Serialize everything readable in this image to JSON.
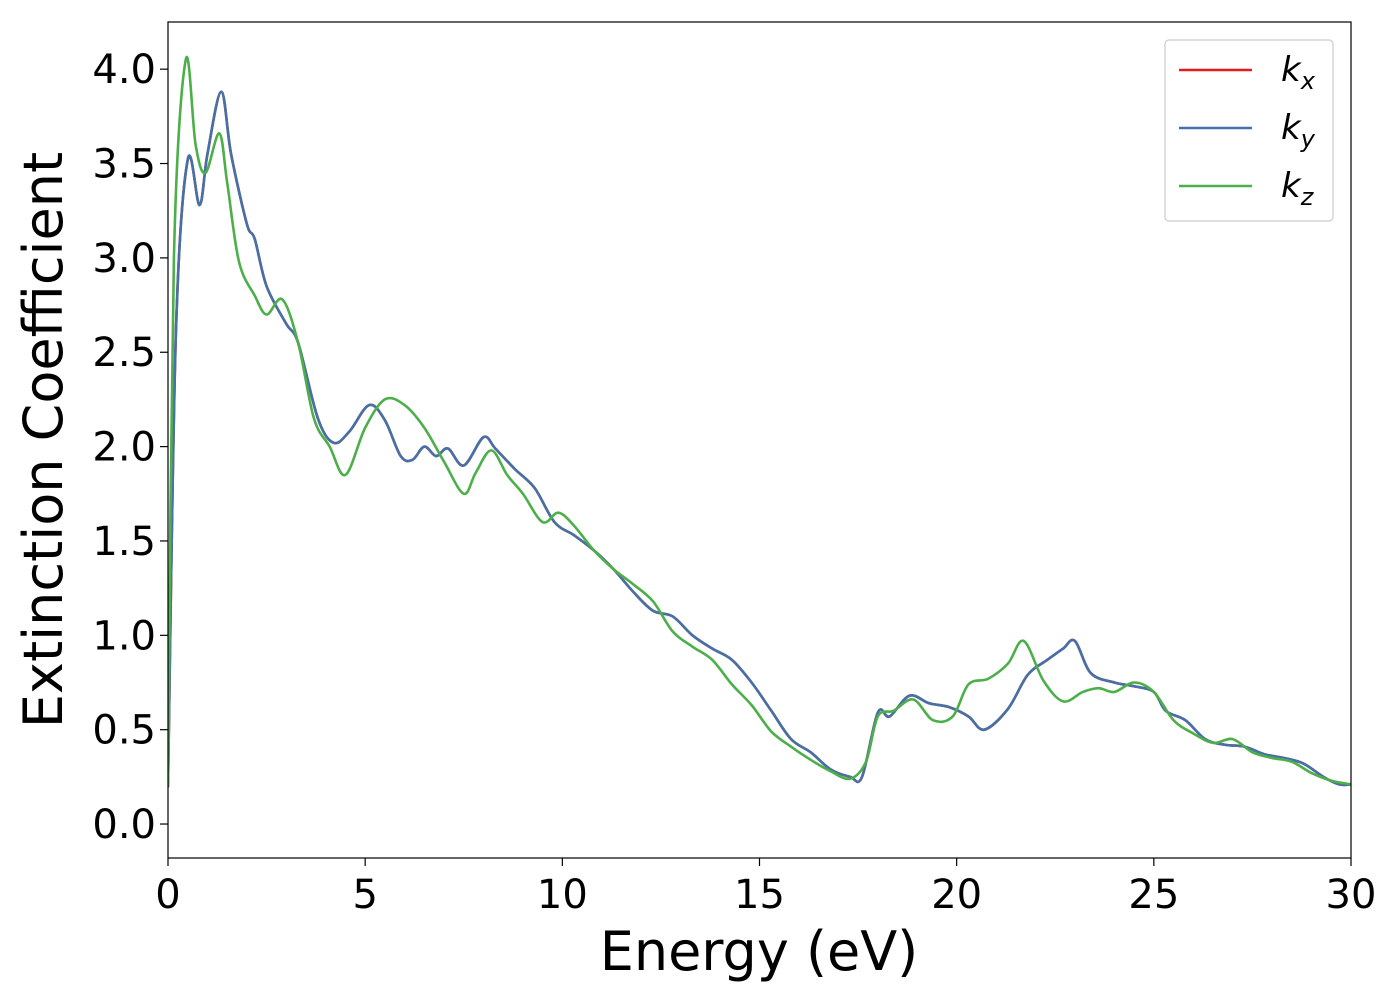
{
  "chart_data": {
    "type": "line",
    "xlabel": "Energy (eV)",
    "ylabel": "Extinction Coefficient",
    "xlim": [
      0,
      30
    ],
    "ylim": [
      -0.18,
      4.25
    ],
    "xticks": [
      "0",
      "5",
      "10",
      "15",
      "20",
      "25",
      "30"
    ],
    "yticks": [
      "0.0",
      "0.5",
      "1.0",
      "1.5",
      "2.0",
      "2.5",
      "3.0",
      "3.5",
      "4.0"
    ],
    "grid": false,
    "legend_position": "top-right",
    "series": [
      {
        "name": "k_x",
        "legend_base": "k",
        "legend_sub": "x",
        "color": "#e41a1c",
        "x": [
          0,
          0.2,
          0.5,
          0.8,
          1.0,
          1.35,
          1.6,
          2.0,
          2.2,
          2.5,
          3.0,
          3.3,
          3.8,
          4.2,
          4.6,
          5.1,
          5.5,
          5.9,
          6.2,
          6.5,
          6.8,
          7.1,
          7.5,
          8.0,
          8.3,
          8.8,
          9.3,
          9.8,
          10.3,
          10.8,
          11.3,
          11.8,
          12.3,
          12.8,
          13.3,
          13.8,
          14.3,
          14.8,
          15.3,
          15.8,
          16.3,
          16.8,
          17.3,
          17.6,
          18.0,
          18.3,
          18.8,
          19.3,
          19.8,
          20.3,
          20.7,
          21.3,
          21.8,
          22.3,
          22.7,
          23.0,
          23.4,
          24.0,
          24.5,
          25.0,
          25.3,
          25.8,
          26.3,
          26.8,
          27.3,
          27.8,
          28.3,
          28.8,
          29.3,
          29.7,
          30.0
        ],
        "values": [
          0.2,
          2.6,
          3.52,
          3.28,
          3.55,
          3.88,
          3.55,
          3.18,
          3.1,
          2.85,
          2.65,
          2.55,
          2.15,
          2.02,
          2.08,
          2.22,
          2.14,
          1.95,
          1.93,
          2.0,
          1.95,
          1.99,
          1.9,
          2.05,
          1.99,
          1.88,
          1.78,
          1.6,
          1.53,
          1.45,
          1.35,
          1.23,
          1.13,
          1.1,
          1.0,
          0.93,
          0.87,
          0.75,
          0.6,
          0.45,
          0.38,
          0.29,
          0.25,
          0.25,
          0.59,
          0.57,
          0.68,
          0.64,
          0.62,
          0.57,
          0.5,
          0.61,
          0.79,
          0.87,
          0.93,
          0.97,
          0.8,
          0.75,
          0.73,
          0.7,
          0.6,
          0.55,
          0.45,
          0.42,
          0.41,
          0.37,
          0.35,
          0.32,
          0.25,
          0.21,
          0.21
        ]
      },
      {
        "name": "k_y",
        "legend_base": "k",
        "legend_sub": "y",
        "color": "#4472a8",
        "x": [
          0,
          0.2,
          0.5,
          0.8,
          1.0,
          1.35,
          1.6,
          2.0,
          2.2,
          2.5,
          3.0,
          3.3,
          3.8,
          4.2,
          4.6,
          5.1,
          5.5,
          5.9,
          6.2,
          6.5,
          6.8,
          7.1,
          7.5,
          8.0,
          8.3,
          8.8,
          9.3,
          9.8,
          10.3,
          10.8,
          11.3,
          11.8,
          12.3,
          12.8,
          13.3,
          13.8,
          14.3,
          14.8,
          15.3,
          15.8,
          16.3,
          16.8,
          17.3,
          17.6,
          18.0,
          18.3,
          18.8,
          19.3,
          19.8,
          20.3,
          20.7,
          21.3,
          21.8,
          22.3,
          22.7,
          23.0,
          23.4,
          24.0,
          24.5,
          25.0,
          25.3,
          25.8,
          26.3,
          26.8,
          27.3,
          27.8,
          28.3,
          28.8,
          29.3,
          29.7,
          30.0
        ],
        "values": [
          0.2,
          2.6,
          3.52,
          3.28,
          3.55,
          3.88,
          3.55,
          3.18,
          3.1,
          2.85,
          2.65,
          2.55,
          2.15,
          2.02,
          2.08,
          2.22,
          2.14,
          1.95,
          1.93,
          2.0,
          1.95,
          1.99,
          1.9,
          2.05,
          1.99,
          1.88,
          1.78,
          1.6,
          1.53,
          1.45,
          1.35,
          1.23,
          1.13,
          1.1,
          1.0,
          0.93,
          0.87,
          0.75,
          0.6,
          0.45,
          0.38,
          0.29,
          0.25,
          0.25,
          0.59,
          0.57,
          0.68,
          0.64,
          0.62,
          0.57,
          0.5,
          0.61,
          0.79,
          0.87,
          0.93,
          0.97,
          0.8,
          0.75,
          0.73,
          0.7,
          0.6,
          0.55,
          0.45,
          0.42,
          0.41,
          0.37,
          0.35,
          0.32,
          0.25,
          0.21,
          0.21
        ]
      },
      {
        "name": "k_z",
        "legend_base": "k",
        "legend_sub": "z",
        "color": "#4daf4a",
        "x": [
          0,
          0.15,
          0.45,
          0.7,
          0.95,
          1.3,
          1.5,
          1.8,
          2.2,
          2.5,
          2.9,
          3.3,
          3.7,
          4.1,
          4.5,
          5.0,
          5.5,
          6.0,
          6.5,
          7.0,
          7.5,
          7.8,
          8.2,
          8.6,
          9.0,
          9.5,
          9.9,
          10.3,
          10.8,
          11.3,
          11.8,
          12.3,
          12.8,
          13.3,
          13.8,
          14.3,
          14.8,
          15.3,
          15.8,
          16.3,
          16.8,
          17.3,
          17.7,
          18.0,
          18.4,
          18.9,
          19.4,
          19.9,
          20.3,
          20.8,
          21.3,
          21.7,
          22.2,
          22.7,
          23.2,
          23.6,
          24.0,
          24.5,
          25.0,
          25.5,
          26.0,
          26.5,
          27.0,
          27.5,
          28.0,
          28.5,
          29.0,
          29.5,
          30.0
        ],
        "values": [
          0.2,
          3.0,
          4.05,
          3.6,
          3.45,
          3.66,
          3.4,
          2.98,
          2.8,
          2.7,
          2.78,
          2.55,
          2.15,
          2.0,
          1.85,
          2.1,
          2.25,
          2.22,
          2.1,
          1.92,
          1.75,
          1.86,
          1.98,
          1.85,
          1.75,
          1.6,
          1.65,
          1.58,
          1.45,
          1.35,
          1.27,
          1.18,
          1.02,
          0.94,
          0.87,
          0.74,
          0.63,
          0.49,
          0.41,
          0.34,
          0.28,
          0.24,
          0.33,
          0.57,
          0.6,
          0.66,
          0.55,
          0.57,
          0.74,
          0.77,
          0.85,
          0.97,
          0.76,
          0.65,
          0.7,
          0.72,
          0.7,
          0.75,
          0.7,
          0.55,
          0.48,
          0.43,
          0.45,
          0.38,
          0.35,
          0.33,
          0.27,
          0.23,
          0.21
        ]
      }
    ]
  }
}
